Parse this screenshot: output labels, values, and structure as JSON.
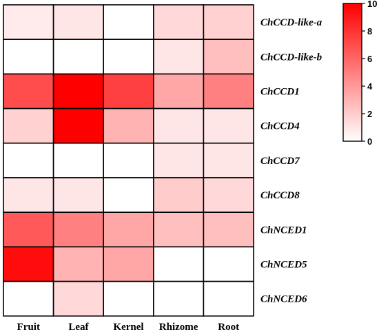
{
  "chart_data": {
    "type": "heatmap",
    "title": "",
    "xlabel": "",
    "ylabel": "",
    "columns": [
      "Fruit",
      "Leaf",
      "Kernel",
      "Rhizome",
      "Root"
    ],
    "rows": [
      "ChCCD-like-a",
      "ChCCD-like-b",
      "ChCCD1",
      "ChCCD4",
      "ChCCD7",
      "ChCCD8",
      "ChNCED1",
      "ChNCED5",
      "ChNCED6"
    ],
    "values": [
      [
        0.8,
        1.0,
        0.0,
        1.5,
        1.8
      ],
      [
        0.0,
        0.0,
        0.0,
        1.0,
        2.5
      ],
      [
        7.0,
        10.0,
        7.5,
        3.5,
        5.0
      ],
      [
        1.8,
        10.0,
        3.0,
        1.0,
        1.0
      ],
      [
        0.0,
        0.0,
        0.0,
        1.0,
        1.0
      ],
      [
        1.0,
        1.0,
        0.0,
        2.0,
        1.5
      ],
      [
        6.5,
        5.0,
        3.5,
        2.5,
        2.5
      ],
      [
        9.5,
        3.0,
        3.5,
        0.0,
        0.0
      ],
      [
        0.0,
        1.5,
        0.0,
        0.0,
        0.0
      ]
    ],
    "colorbar": {
      "min": 0,
      "max": 10,
      "ticks": [
        "0",
        "2",
        "4",
        "6",
        "8",
        "10"
      ],
      "low_color": "#ffffff",
      "high_color": "#ff0000"
    }
  }
}
